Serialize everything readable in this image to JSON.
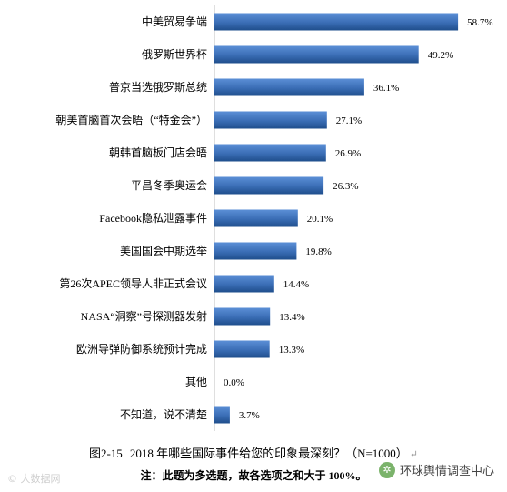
{
  "chart_data": {
    "type": "bar",
    "orientation": "horizontal",
    "categories": [
      "中美贸易争端",
      "俄罗斯世界杯",
      "普京当选俄罗斯总统",
      "朝美首脑首次会晤（“特金会”）",
      "朝韩首脑板门店会晤",
      "平昌冬季奥运会",
      "Facebook隐私泄露事件",
      "美国国会中期选举",
      "第26次APEC领导人非正式会议",
      "NASA“洞察”号探测器发射",
      "欧洲导弹防御系统预计完成",
      "其他",
      "不知道，说不清楚"
    ],
    "values": [
      58.7,
      49.2,
      36.1,
      27.1,
      26.9,
      26.3,
      20.1,
      19.8,
      14.4,
      13.4,
      13.3,
      0.0,
      3.7
    ],
    "value_labels": [
      "58.7%",
      "49.2%",
      "36.1%",
      "27.1%",
      "26.9%",
      "26.3%",
      "20.1%",
      "19.8%",
      "14.4%",
      "13.4%",
      "13.3%",
      "0.0%",
      "3.7%"
    ],
    "xlim": [
      0,
      60
    ],
    "bar_color": "#3a6db5",
    "bar_color_dark": "#1f4e8c",
    "grid": false,
    "legend": "none"
  },
  "caption": {
    "figure_number": "图2-15",
    "title": "2018 年哪些国际事件给您的印象最深刻？（N=1000）",
    "return_mark": "↵"
  },
  "note": "注：此题为多选题，故各选项之和大于 100%。",
  "watermarks": {
    "left": "© 大数据网",
    "right": "环球舆情调查中心"
  }
}
